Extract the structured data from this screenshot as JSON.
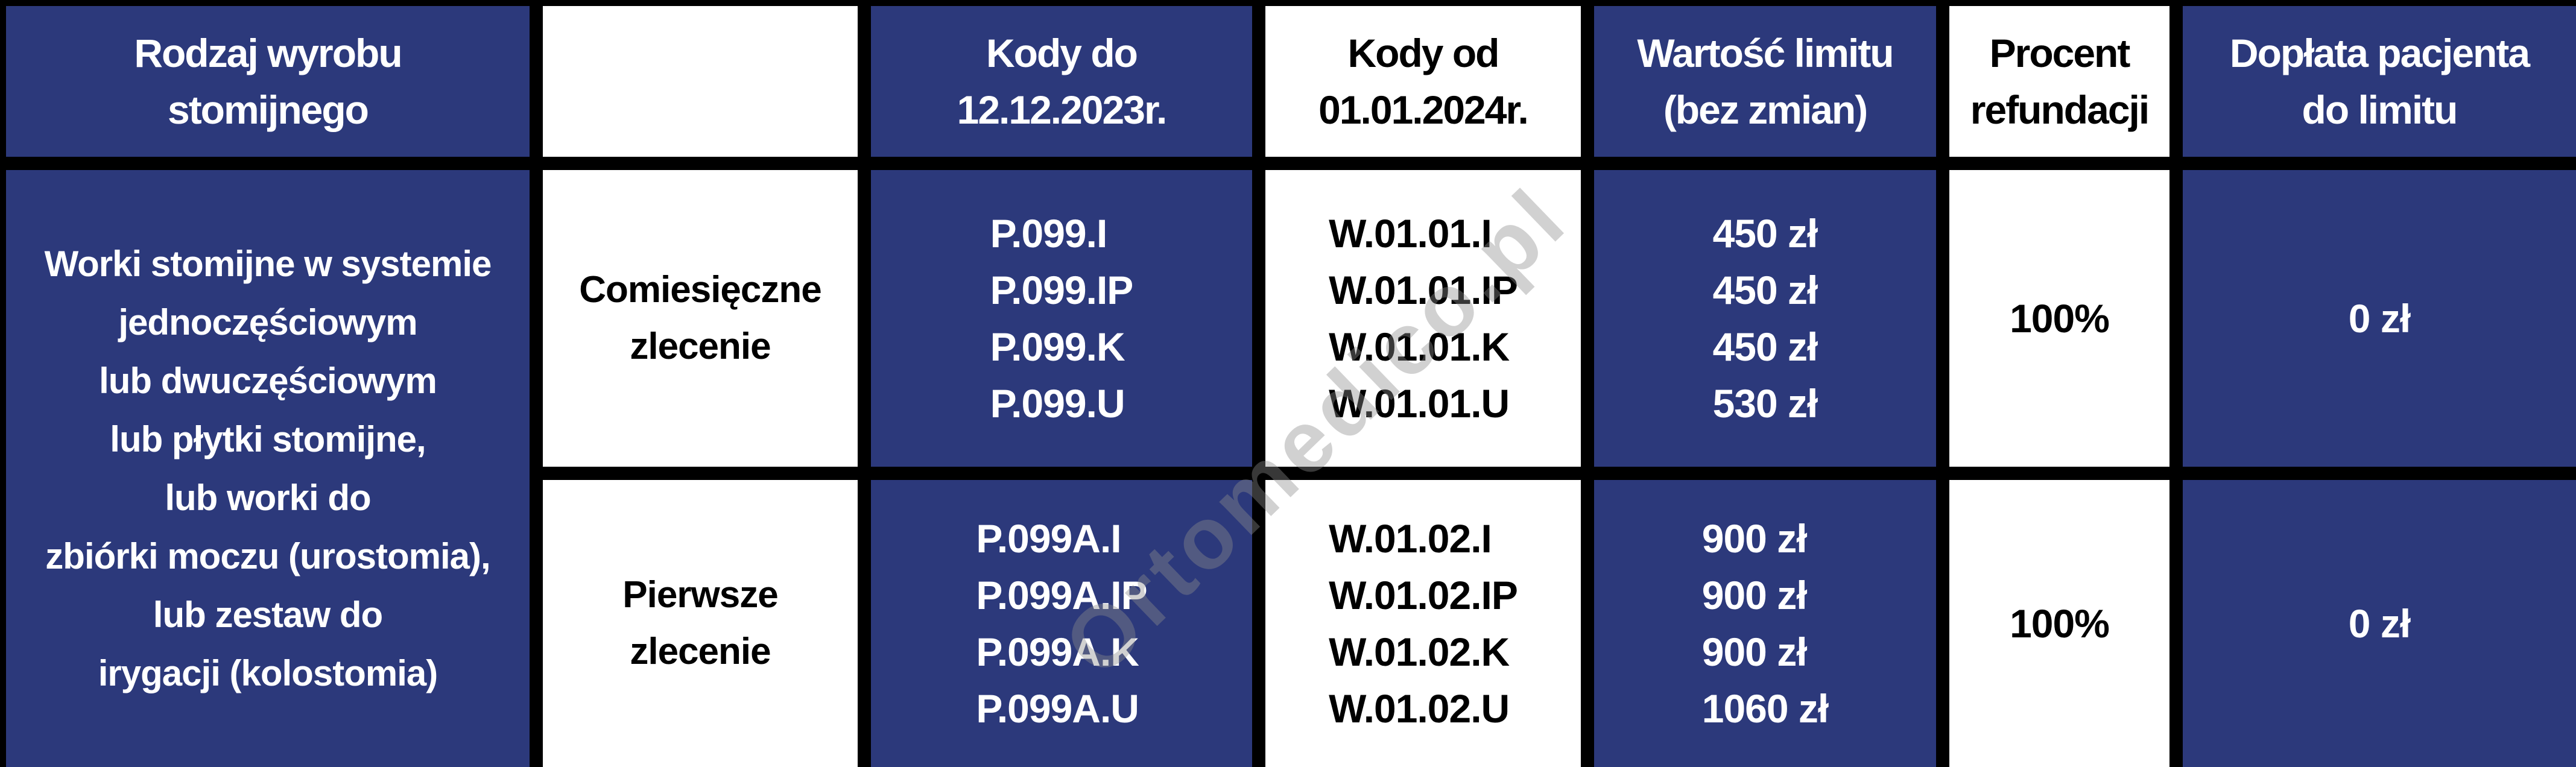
{
  "colors": {
    "cell_navy": "#2c397b",
    "cell_white": "#ffffff",
    "grid_black": "#000000",
    "text_on_navy": "#ffffff",
    "text_on_white": "#000000",
    "watermark_gray": "#8c8c8c"
  },
  "watermark": {
    "text": "Ortomedico.pl"
  },
  "header": {
    "product_type": [
      "Rodzaj wyrobu",
      "stomijnego"
    ],
    "empty": "",
    "codes_until": [
      "Kody do",
      "12.12.2023r."
    ],
    "codes_from": [
      "Kody od",
      "01.01.2024r."
    ],
    "limit_value": [
      "Wartość limitu",
      "(bez zmian)"
    ],
    "refund_percent": [
      "Procent",
      "refundacji"
    ],
    "patient_copay": [
      "Dopłata pacjenta",
      "do limitu"
    ]
  },
  "product_group": {
    "lines": [
      "Worki stomijne w systemie",
      "jednoczęściowym",
      "lub dwuczęściowym",
      "lub płytki stomijne,",
      "lub worki do",
      "zbiórki moczu (urostomia),",
      "lub zestaw do",
      "irygacji (kolostomia)"
    ]
  },
  "rows": [
    {
      "order_type": [
        "Comiesięczne",
        "zlecenie"
      ],
      "codes_until": [
        "P.099.I",
        "P.099.IP",
        "P.099.K",
        "P.099.U"
      ],
      "codes_from": [
        "W.01.01.I",
        "W.01.01.IP",
        "W.01.01.K",
        "W.01.01.U"
      ],
      "limit_values": [
        "450 zł",
        "450 zł",
        "450 zł",
        "530 zł"
      ],
      "refund_percent": "100%",
      "patient_copay": "0 zł"
    },
    {
      "order_type": [
        "Pierwsze",
        "zlecenie"
      ],
      "codes_until": [
        "P.099A.I",
        "P.099A.IP",
        "P.099A.K",
        "P.099A.U"
      ],
      "codes_from": [
        "W.01.02.I",
        "W.01.02.IP",
        "W.01.02.K",
        "W.01.02.U"
      ],
      "limit_values": [
        "900 zł",
        "900 zł",
        "900 zł",
        "1060 zł"
      ],
      "refund_percent": "100%",
      "patient_copay": "0 zł"
    }
  ]
}
